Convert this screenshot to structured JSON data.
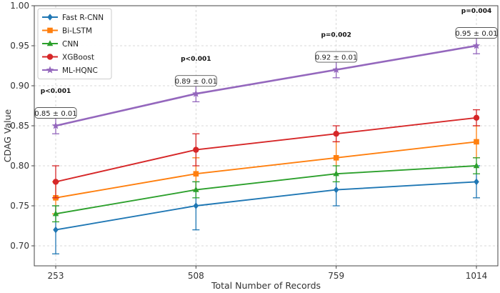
{
  "chart_data": {
    "type": "line",
    "xlabel": "Total Number of Records",
    "ylabel": "CDAG Value",
    "categories": [
      "253",
      "508",
      "759",
      "1014"
    ],
    "ylim": [
      0.675,
      1.0
    ],
    "yticks": [
      "0.70",
      "0.75",
      "0.80",
      "0.85",
      "0.90",
      "0.95",
      "1.00"
    ],
    "grid": true,
    "legend_position": "top-left",
    "series": [
      {
        "name": "Fast R-CNN",
        "color": "#1f77b4",
        "marker": "diamond",
        "values": [
          0.72,
          0.75,
          0.77,
          0.78
        ],
        "errors": [
          0.03,
          0.03,
          0.02,
          0.02
        ]
      },
      {
        "name": "Bi-LSTM",
        "color": "#ff7f0e",
        "marker": "square",
        "values": [
          0.76,
          0.79,
          0.81,
          0.83
        ],
        "errors": [
          0.02,
          0.02,
          0.02,
          0.02
        ]
      },
      {
        "name": "CNN",
        "color": "#2ca02c",
        "marker": "triangle",
        "values": [
          0.74,
          0.77,
          0.79,
          0.8
        ],
        "errors": [
          0.01,
          0.01,
          0.01,
          0.01
        ]
      },
      {
        "name": "XGBoost",
        "color": "#d62728",
        "marker": "circle",
        "values": [
          0.78,
          0.82,
          0.84,
          0.86
        ],
        "errors": [
          0.02,
          0.02,
          0.01,
          0.01
        ]
      },
      {
        "name": "ML-HQNC",
        "color": "#9467bd",
        "marker": "star",
        "values": [
          0.85,
          0.89,
          0.92,
          0.95
        ],
        "errors": [
          0.01,
          0.01,
          0.01,
          0.01
        ]
      }
    ],
    "annotations": [
      "0.85 ± 0.01",
      "0.89 ± 0.01",
      "0.92 ± 0.01",
      "0.95 ± 0.01"
    ],
    "p_values": [
      "p<0.001",
      "p<0.001",
      "p=0.002",
      "p=0.004"
    ]
  }
}
